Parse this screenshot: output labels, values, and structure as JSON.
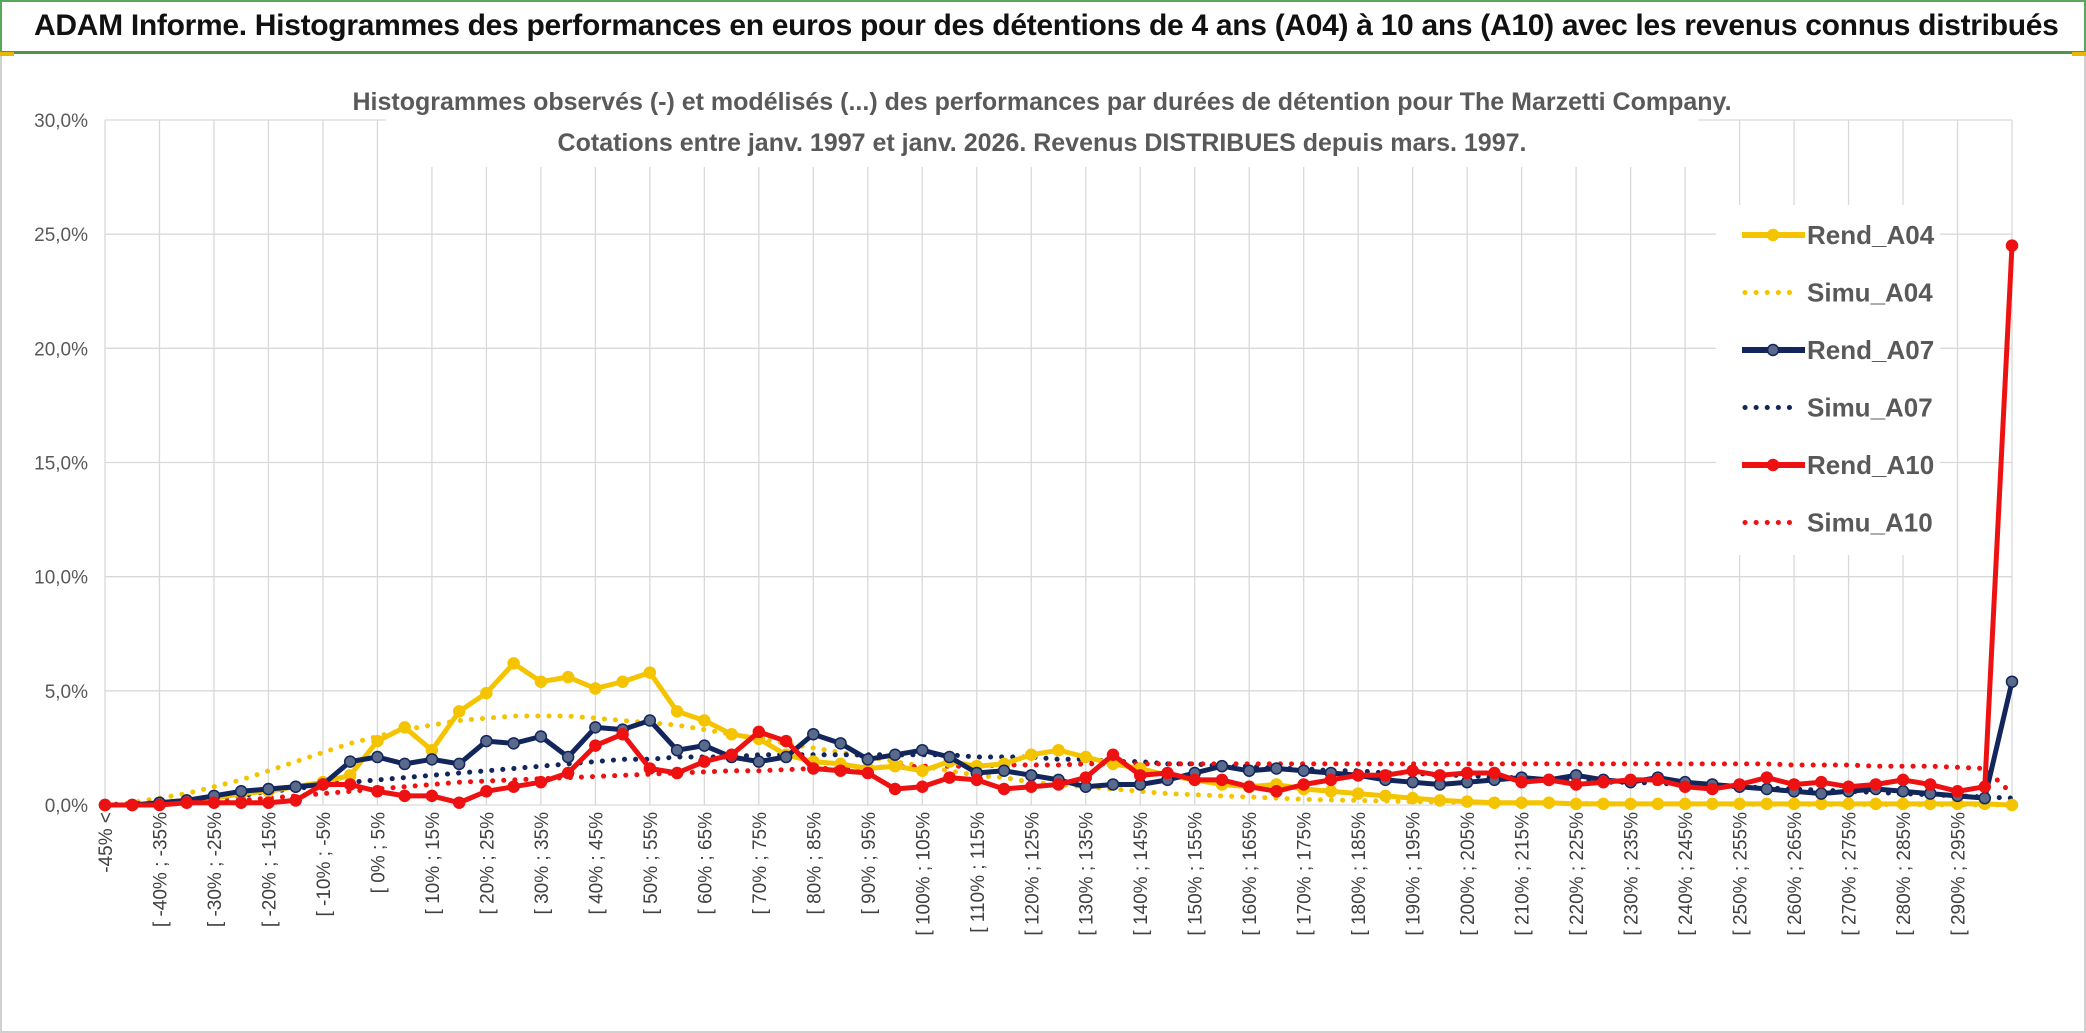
{
  "header": {
    "title": "ADAM Informe. Histogrammes des performances en euros pour des détentions de 4 ans (A04) à 10 ans (A10) avec les revenus connus distribués"
  },
  "colors": {
    "header_bg": "#7cc67a",
    "A04": "#f5c400",
    "A07": "#13265c",
    "A10": "#ee1111",
    "grid": "#d9d9d9",
    "axis_text": "#595959"
  },
  "chart_data": {
    "type": "line",
    "title_lines": [
      "Histogrammes observés (-) et modélisés (...) des performances par durées de détention pour The Marzetti Company.",
      "Cotations entre janv. 1997 et janv. 2026. Revenus DISTRIBUES depuis mars. 1997."
    ],
    "xlabel": "",
    "ylabel": "",
    "ylim": [
      0,
      30
    ],
    "yticks": [
      "0,0%",
      "5,0%",
      "10,0%",
      "15,0%",
      "20,0%",
      "25,0%",
      "30,0%"
    ],
    "grid": true,
    "legend_position": "right",
    "x_labels": [
      "-45% <",
      "[ -40% ; -35%",
      "[ -30% ; -25%",
      "[ -20% ; -15%",
      "[ -10% ; -5%",
      "[ 0% ; 5%",
      "[ 10% ; 15%",
      "[ 20% ; 25%",
      "[ 30% ; 35%",
      "[ 40% ; 45%",
      "[ 50% ; 55%",
      "[ 60% ; 65%",
      "[ 70% ; 75%",
      "[ 80% ; 85%",
      "[ 90% ; 95%",
      "[ 100% ; 105%",
      "[ 110% ; 115%",
      "[ 120% ; 125%",
      "[ 130% ; 135%",
      "[ 140% ; 145%",
      "[ 150% ; 155%",
      "[ 160% ; 165%",
      "[ 170% ; 175%",
      "[ 180% ; 185%",
      "[ 190% ; 195%",
      "[ 200% ; 205%",
      "[ 210% ; 215%",
      "[ 220% ; 225%",
      "[ 230% ; 235%",
      "[ 240% ; 245%",
      "[ 250% ; 255%",
      "[ 260% ; 265%",
      "[ 270% ; 275%",
      "[ 280% ; 285%",
      "[ 290% ; 295%"
    ],
    "categories_count": 71,
    "series": [
      {
        "name": "Rend_A04",
        "style": "solid",
        "color": "#f5c400",
        "values": [
          0,
          0,
          0.1,
          0.2,
          0.3,
          0.5,
          0.6,
          0.8,
          1.0,
          1.3,
          2.8,
          3.4,
          2.4,
          4.1,
          4.9,
          6.2,
          5.4,
          5.6,
          5.1,
          5.4,
          5.8,
          4.1,
          3.7,
          3.1,
          2.9,
          2.2,
          1.9,
          1.8,
          1.6,
          1.7,
          1.5,
          1.9,
          1.7,
          1.8,
          2.2,
          2.4,
          2.1,
          1.8,
          1.6,
          1.3,
          1.1,
          0.9,
          0.8,
          0.9,
          0.7,
          0.6,
          0.5,
          0.4,
          0.3,
          0.2,
          0.15,
          0.1,
          0.1,
          0.1,
          0.05,
          0.05,
          0.05,
          0.05,
          0.05,
          0.05,
          0.05,
          0.05,
          0.05,
          0.05,
          0.05,
          0.05,
          0.05,
          0.05,
          0.05,
          0.05,
          0
        ]
      },
      {
        "name": "Simu_A04",
        "style": "dotted",
        "color": "#f5c400",
        "values": [
          0,
          0.1,
          0.3,
          0.5,
          0.8,
          1.1,
          1.5,
          1.9,
          2.3,
          2.7,
          3.0,
          3.3,
          3.5,
          3.7,
          3.8,
          3.9,
          3.9,
          3.9,
          3.8,
          3.7,
          3.6,
          3.5,
          3.3,
          3.1,
          2.9,
          2.7,
          2.5,
          2.3,
          2.1,
          1.9,
          1.7,
          1.5,
          1.3,
          1.2,
          1.0,
          0.9,
          0.8,
          0.7,
          0.6,
          0.5,
          0.45,
          0.4,
          0.35,
          0.3,
          0.25,
          0.22,
          0.2,
          0.17,
          0.15,
          0.13,
          0.12,
          0.1,
          0.09,
          0.08,
          0.07,
          0.06,
          0.05,
          0.05,
          0.04,
          0.04,
          0.03,
          0.03,
          0.03,
          0.02,
          0.02,
          0.02,
          0.02,
          0.01,
          0.01,
          0.01,
          0
        ]
      },
      {
        "name": "Rend_A07",
        "style": "solid",
        "color": "#13265c",
        "values": [
          0,
          0,
          0.1,
          0.2,
          0.4,
          0.6,
          0.7,
          0.8,
          0.9,
          1.9,
          2.1,
          1.8,
          2.0,
          1.8,
          2.8,
          2.7,
          3.0,
          2.1,
          3.4,
          3.3,
          3.7,
          2.4,
          2.6,
          2.1,
          1.9,
          2.1,
          3.1,
          2.7,
          2.0,
          2.2,
          2.4,
          2.1,
          1.4,
          1.5,
          1.3,
          1.1,
          0.8,
          0.9,
          0.9,
          1.1,
          1.4,
          1.7,
          1.5,
          1.6,
          1.5,
          1.4,
          1.3,
          1.1,
          1.0,
          0.9,
          1.0,
          1.1,
          1.2,
          1.1,
          1.3,
          1.1,
          1.0,
          1.2,
          1.0,
          0.9,
          0.8,
          0.7,
          0.6,
          0.5,
          0.6,
          0.7,
          0.6,
          0.5,
          0.4,
          0.3,
          5.4
        ]
      },
      {
        "name": "Simu_A07",
        "style": "dotted",
        "color": "#13265c",
        "values": [
          0,
          0.05,
          0.1,
          0.2,
          0.3,
          0.4,
          0.6,
          0.7,
          0.9,
          1.0,
          1.1,
          1.2,
          1.3,
          1.4,
          1.5,
          1.6,
          1.7,
          1.8,
          1.9,
          2.0,
          2.0,
          2.1,
          2.1,
          2.1,
          2.2,
          2.2,
          2.2,
          2.2,
          2.2,
          2.2,
          2.2,
          2.2,
          2.1,
          2.1,
          2.1,
          2.0,
          2.0,
          1.9,
          1.9,
          1.8,
          1.8,
          1.7,
          1.7,
          1.6,
          1.6,
          1.5,
          1.5,
          1.4,
          1.4,
          1.3,
          1.3,
          1.2,
          1.2,
          1.1,
          1.1,
          1.0,
          1.0,
          0.95,
          0.9,
          0.85,
          0.8,
          0.75,
          0.7,
          0.65,
          0.6,
          0.55,
          0.5,
          0.45,
          0.4,
          0.35,
          0.3
        ]
      },
      {
        "name": "Rend_A10",
        "style": "solid",
        "color": "#ee1111",
        "values": [
          0,
          0,
          0,
          0.1,
          0.1,
          0.1,
          0.1,
          0.2,
          0.9,
          0.9,
          0.6,
          0.4,
          0.4,
          0.1,
          0.6,
          0.8,
          1.0,
          1.4,
          2.6,
          3.1,
          1.6,
          1.4,
          1.9,
          2.2,
          3.2,
          2.8,
          1.6,
          1.5,
          1.4,
          0.7,
          0.8,
          1.2,
          1.1,
          0.7,
          0.8,
          0.9,
          1.2,
          2.2,
          1.3,
          1.4,
          1.1,
          1.1,
          0.8,
          0.6,
          0.9,
          1.1,
          1.3,
          1.3,
          1.5,
          1.3,
          1.4,
          1.4,
          1.0,
          1.1,
          0.9,
          1.0,
          1.1,
          1.1,
          0.8,
          0.7,
          0.9,
          1.2,
          0.9,
          1.0,
          0.8,
          0.9,
          1.1,
          0.9,
          0.6,
          0.8,
          24.5
        ]
      },
      {
        "name": "Simu_A10",
        "style": "dotted",
        "color": "#ee1111",
        "values": [
          0,
          0.02,
          0.05,
          0.1,
          0.15,
          0.2,
          0.3,
          0.4,
          0.5,
          0.6,
          0.7,
          0.8,
          0.9,
          1.0,
          1.05,
          1.1,
          1.15,
          1.2,
          1.25,
          1.3,
          1.35,
          1.4,
          1.45,
          1.5,
          1.5,
          1.55,
          1.6,
          1.6,
          1.65,
          1.65,
          1.7,
          1.7,
          1.7,
          1.75,
          1.75,
          1.75,
          1.8,
          1.8,
          1.8,
          1.8,
          1.8,
          1.8,
          1.8,
          1.8,
          1.8,
          1.8,
          1.8,
          1.8,
          1.8,
          1.8,
          1.8,
          1.8,
          1.8,
          1.8,
          1.8,
          1.8,
          1.8,
          1.8,
          1.8,
          1.8,
          1.8,
          1.8,
          1.75,
          1.75,
          1.75,
          1.7,
          1.7,
          1.7,
          1.65,
          1.6,
          0.5
        ]
      }
    ]
  }
}
